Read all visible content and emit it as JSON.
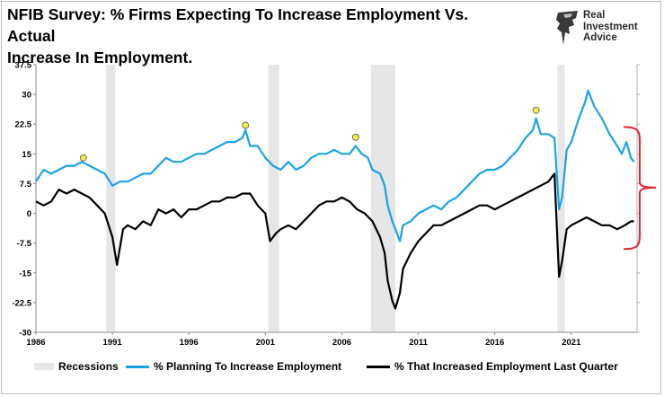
{
  "header": {
    "title_line1": "NFIB Survey:  % Firms Expecting To Increase Employment Vs. Actual",
    "title_line2": "Increase In Employment."
  },
  "brand": {
    "line1": "Real",
    "line2": "Investment",
    "line3": "Advice",
    "icon": "eagle-logo-icon"
  },
  "colors": {
    "planning": "#1aa3e8",
    "actual": "#000000",
    "recession": "#e6e6e6",
    "bracket": "#e8202a",
    "marker": "#f2ef4a"
  },
  "chart_data": {
    "type": "line",
    "title": "NFIB Survey:  % Firms Expecting To Increase Employment Vs. Actual Increase In Employment.",
    "xlabel": "",
    "ylabel": "",
    "xlim": [
      1986,
      2025.3
    ],
    "ylim": [
      -30,
      37.5
    ],
    "grid": false,
    "legend_position": "bottom",
    "x_ticks": [
      "1986",
      "1991",
      "1996",
      "2001",
      "2006",
      "2011",
      "2016",
      "2021"
    ],
    "y_ticks": [
      "37.5",
      "30",
      "22.5",
      "15",
      "7.5",
      "0",
      "-7.5",
      "-15",
      "-22.5",
      "-30"
    ],
    "recessions": [
      [
        1990.6,
        1991.2
      ],
      [
        2001.2,
        2001.9
      ],
      [
        2007.9,
        2009.5
      ],
      [
        2020.1,
        2020.4
      ]
    ],
    "markers": [
      {
        "x": 1989.1,
        "y": 14
      },
      {
        "x": 1999.7,
        "y": 22.2
      },
      {
        "x": 2006.9,
        "y": 19.2
      },
      {
        "x": 2018.7,
        "y": 26
      }
    ],
    "series": [
      {
        "name": "% Planning To Increase Employment",
        "points": [
          [
            1986.0,
            8
          ],
          [
            1986.5,
            11
          ],
          [
            1987.0,
            10
          ],
          [
            1987.5,
            11
          ],
          [
            1988.0,
            12
          ],
          [
            1988.5,
            12
          ],
          [
            1989.0,
            13
          ],
          [
            1989.5,
            12
          ],
          [
            1990.0,
            11
          ],
          [
            1990.5,
            10
          ],
          [
            1991.0,
            7
          ],
          [
            1991.5,
            8
          ],
          [
            1992.0,
            8
          ],
          [
            1992.5,
            9
          ],
          [
            1993.0,
            10
          ],
          [
            1993.5,
            10
          ],
          [
            1994.0,
            12
          ],
          [
            1994.5,
            14
          ],
          [
            1995.0,
            13
          ],
          [
            1995.5,
            13
          ],
          [
            1996.0,
            14
          ],
          [
            1996.5,
            15
          ],
          [
            1997.0,
            15
          ],
          [
            1997.5,
            16
          ],
          [
            1998.0,
            17
          ],
          [
            1998.5,
            18
          ],
          [
            1999.0,
            18
          ],
          [
            1999.5,
            19
          ],
          [
            1999.7,
            21
          ],
          [
            2000.0,
            17
          ],
          [
            2000.5,
            17
          ],
          [
            2001.0,
            14
          ],
          [
            2001.5,
            12
          ],
          [
            2002.0,
            11
          ],
          [
            2002.5,
            13
          ],
          [
            2003.0,
            11
          ],
          [
            2003.5,
            12
          ],
          [
            2004.0,
            14
          ],
          [
            2004.5,
            15
          ],
          [
            2005.0,
            15
          ],
          [
            2005.5,
            16
          ],
          [
            2006.0,
            15
          ],
          [
            2006.5,
            15
          ],
          [
            2006.9,
            17
          ],
          [
            2007.3,
            15
          ],
          [
            2007.7,
            14
          ],
          [
            2008.0,
            11
          ],
          [
            2008.5,
            10
          ],
          [
            2008.8,
            7
          ],
          [
            2009.0,
            2
          ],
          [
            2009.3,
            -2
          ],
          [
            2009.5,
            -4
          ],
          [
            2009.8,
            -7
          ],
          [
            2010.0,
            -3
          ],
          [
            2010.5,
            -2
          ],
          [
            2011.0,
            0
          ],
          [
            2011.5,
            1
          ],
          [
            2012.0,
            2
          ],
          [
            2012.5,
            1
          ],
          [
            2013.0,
            3
          ],
          [
            2013.5,
            4
          ],
          [
            2014.0,
            6
          ],
          [
            2014.5,
            8
          ],
          [
            2015.0,
            10
          ],
          [
            2015.5,
            11
          ],
          [
            2016.0,
            11
          ],
          [
            2016.5,
            12
          ],
          [
            2017.0,
            14
          ],
          [
            2017.5,
            16
          ],
          [
            2018.0,
            19
          ],
          [
            2018.5,
            21
          ],
          [
            2018.7,
            24
          ],
          [
            2019.0,
            20
          ],
          [
            2019.5,
            20
          ],
          [
            2019.9,
            19
          ],
          [
            2020.2,
            1
          ],
          [
            2020.4,
            4
          ],
          [
            2020.7,
            16
          ],
          [
            2021.0,
            18
          ],
          [
            2021.5,
            24
          ],
          [
            2021.9,
            28
          ],
          [
            2022.1,
            31
          ],
          [
            2022.5,
            27
          ],
          [
            2023.0,
            24
          ],
          [
            2023.5,
            20
          ],
          [
            2024.0,
            17
          ],
          [
            2024.3,
            15
          ],
          [
            2024.6,
            18
          ],
          [
            2024.9,
            14
          ],
          [
            2025.1,
            13
          ]
        ]
      },
      {
        "name": "% That Increased Employment Last Quarter",
        "points": [
          [
            1986.0,
            3
          ],
          [
            1986.5,
            2
          ],
          [
            1987.0,
            3
          ],
          [
            1987.5,
            6
          ],
          [
            1988.0,
            5
          ],
          [
            1988.5,
            6
          ],
          [
            1989.0,
            5
          ],
          [
            1989.5,
            4
          ],
          [
            1990.0,
            2
          ],
          [
            1990.5,
            0
          ],
          [
            1991.0,
            -6
          ],
          [
            1991.3,
            -13
          ],
          [
            1991.7,
            -4
          ],
          [
            1992.0,
            -3
          ],
          [
            1992.5,
            -4
          ],
          [
            1993.0,
            -2
          ],
          [
            1993.5,
            -3
          ],
          [
            1994.0,
            1
          ],
          [
            1994.5,
            0
          ],
          [
            1995.0,
            1
          ],
          [
            1995.5,
            -1
          ],
          [
            1996.0,
            1
          ],
          [
            1996.5,
            1
          ],
          [
            1997.0,
            2
          ],
          [
            1997.5,
            3
          ],
          [
            1998.0,
            3
          ],
          [
            1998.5,
            4
          ],
          [
            1999.0,
            4
          ],
          [
            1999.5,
            5
          ],
          [
            2000.0,
            5
          ],
          [
            2000.5,
            2
          ],
          [
            2001.0,
            0
          ],
          [
            2001.3,
            -7
          ],
          [
            2001.7,
            -5
          ],
          [
            2002.0,
            -4
          ],
          [
            2002.5,
            -3
          ],
          [
            2003.0,
            -4
          ],
          [
            2003.5,
            -2
          ],
          [
            2004.0,
            0
          ],
          [
            2004.5,
            2
          ],
          [
            2005.0,
            3
          ],
          [
            2005.5,
            3
          ],
          [
            2006.0,
            4
          ],
          [
            2006.5,
            3
          ],
          [
            2007.0,
            1
          ],
          [
            2007.5,
            0
          ],
          [
            2008.0,
            -2
          ],
          [
            2008.5,
            -6
          ],
          [
            2008.8,
            -10
          ],
          [
            2009.0,
            -17
          ],
          [
            2009.3,
            -22
          ],
          [
            2009.5,
            -24
          ],
          [
            2009.8,
            -20
          ],
          [
            2010.0,
            -14
          ],
          [
            2010.5,
            -10
          ],
          [
            2011.0,
            -7
          ],
          [
            2011.5,
            -5
          ],
          [
            2012.0,
            -3
          ],
          [
            2012.5,
            -3
          ],
          [
            2013.0,
            -2
          ],
          [
            2013.5,
            -1
          ],
          [
            2014.0,
            0
          ],
          [
            2014.5,
            1
          ],
          [
            2015.0,
            2
          ],
          [
            2015.5,
            2
          ],
          [
            2016.0,
            1
          ],
          [
            2016.5,
            2
          ],
          [
            2017.0,
            3
          ],
          [
            2017.5,
            4
          ],
          [
            2018.0,
            5
          ],
          [
            2018.5,
            6
          ],
          [
            2019.0,
            7
          ],
          [
            2019.5,
            8
          ],
          [
            2019.9,
            10
          ],
          [
            2020.2,
            -16
          ],
          [
            2020.4,
            -12
          ],
          [
            2020.7,
            -4
          ],
          [
            2021.0,
            -3
          ],
          [
            2021.5,
            -2
          ],
          [
            2022.0,
            -1
          ],
          [
            2022.5,
            -2
          ],
          [
            2023.0,
            -3
          ],
          [
            2023.5,
            -3
          ],
          [
            2024.0,
            -4
          ],
          [
            2024.5,
            -3
          ],
          [
            2024.9,
            -2
          ],
          [
            2025.1,
            -2
          ]
        ]
      }
    ]
  },
  "legend": {
    "recessions": "Recessions",
    "planning": "% Planning To Increase Employment",
    "actual": "% That Increased Employment Last Quarter"
  }
}
